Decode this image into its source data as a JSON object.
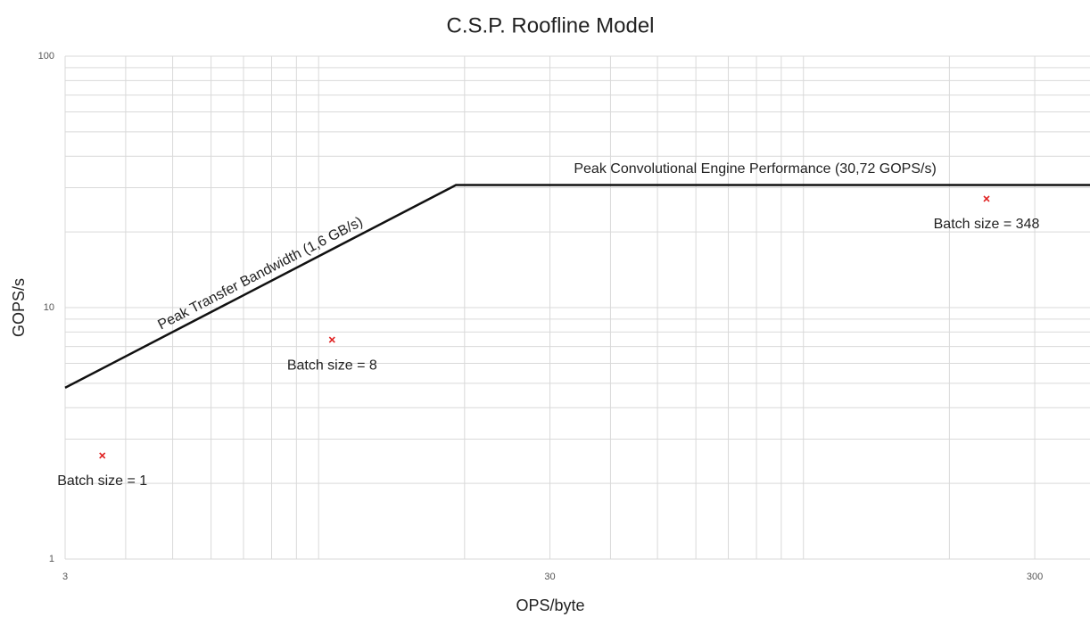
{
  "chart_data": {
    "type": "line",
    "title": "C.S.P. Roofline Model",
    "xlabel": "OPS/byte",
    "ylabel": "GOPS/s",
    "xscale": "log",
    "yscale": "log",
    "grid": true,
    "xlim": [
      3,
      390
    ],
    "ylim": [
      1,
      100
    ],
    "xticks": [
      3,
      30,
      300
    ],
    "yticks": [
      1,
      10,
      100
    ],
    "xminor": [
      4,
      5,
      6,
      7,
      8,
      9,
      10,
      20,
      40,
      50,
      60,
      70,
      80,
      90,
      100,
      200
    ],
    "yminor": [
      2,
      3,
      4,
      5,
      6,
      7,
      8,
      9,
      20,
      30,
      40,
      50,
      60,
      70,
      80,
      90
    ],
    "annotations": [
      "Peak Transfer Bandwidth (1,6 GB/s)",
      "Peak Convolutional Engine Performance (30,72 GOPS/s)"
    ],
    "series": [
      {
        "type": "line",
        "color": "#111111",
        "x": [
          3,
          19.2,
          390
        ],
        "values": [
          4.8,
          30.72,
          30.72
        ]
      },
      {
        "type": "scatter",
        "color": "#e02020",
        "x": [
          3.58,
          10.66,
          238.6
        ],
        "values": [
          2.58,
          7.45,
          27.1
        ],
        "labels": [
          "Batch size = 1",
          "Batch size = 8",
          "Batch size = 348"
        ]
      }
    ]
  }
}
